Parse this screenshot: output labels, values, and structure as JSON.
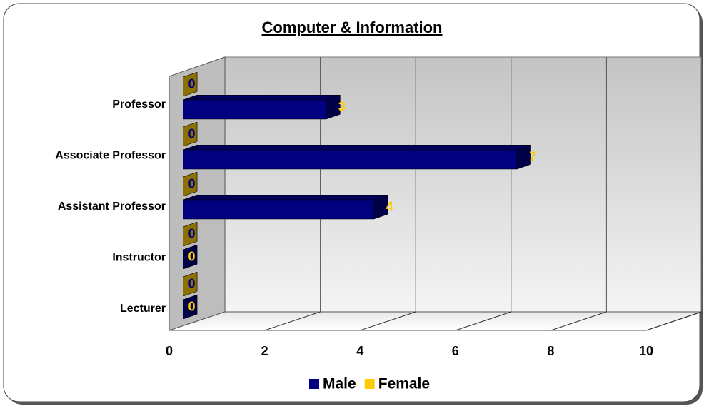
{
  "chart_data": {
    "type": "bar",
    "orientation": "horizontal",
    "title": "Computer & Information",
    "categories": [
      "Professor",
      "Associate Professor",
      "Assistant Professor",
      "Instructor",
      "Lecturer"
    ],
    "series": [
      {
        "name": "Male",
        "color": "#000080",
        "values": [
          3,
          7,
          4,
          0,
          0
        ]
      },
      {
        "name": "Female",
        "color": "#FFCC00",
        "values": [
          0,
          0,
          0,
          0,
          0
        ]
      }
    ],
    "xlim": [
      0,
      10
    ],
    "xticks": [
      0,
      2,
      4,
      6,
      8,
      10
    ],
    "grid": true,
    "legend": "bottom"
  }
}
